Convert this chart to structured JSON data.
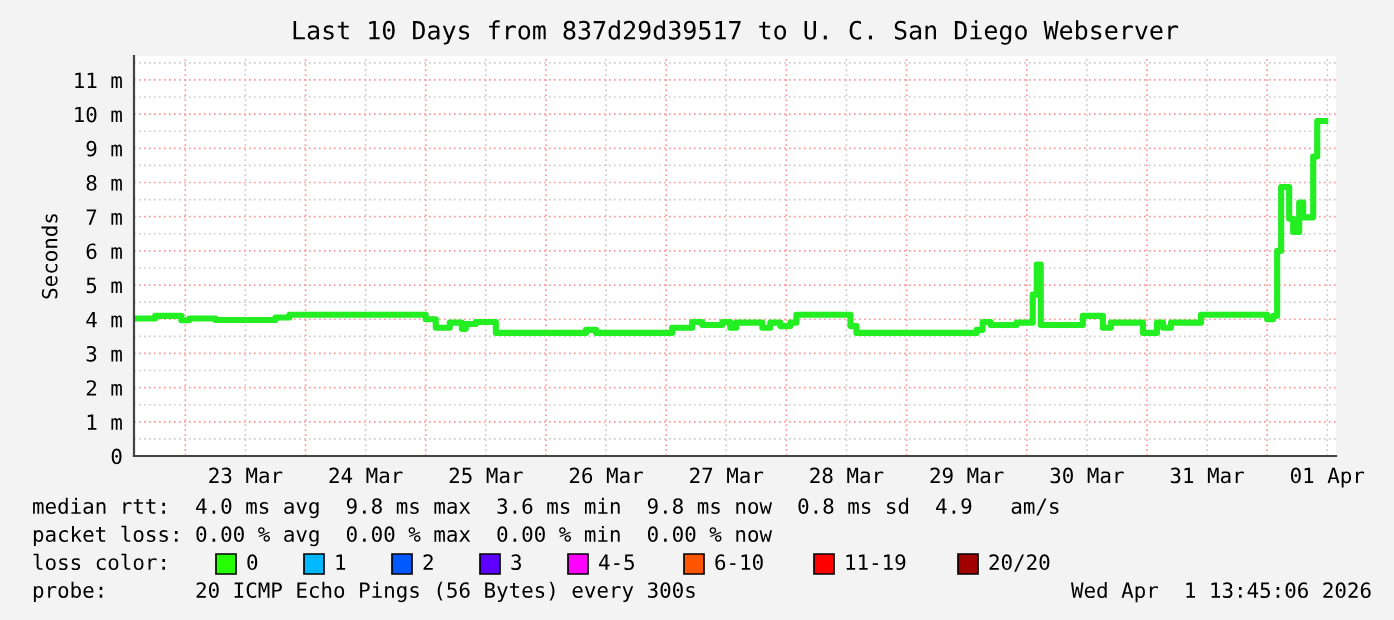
{
  "chart_data": {
    "type": "step",
    "title": "Last 10 Days from 837d29d39517 to U. C. San Diego Webserver",
    "ylabel": "Seconds",
    "x": [
      "2026-03-22T13:45",
      "2026-03-22T18:00",
      "2026-03-22T23:12",
      "2026-03-23T00:48",
      "2026-03-23T06:00",
      "2026-03-23T18:00",
      "2026-03-23T20:48",
      "2026-03-25T00:00",
      "2026-03-25T02:00",
      "2026-03-25T04:48",
      "2026-03-25T07:12",
      "2026-03-25T08:00",
      "2026-03-25T10:00",
      "2026-03-25T14:00",
      "2026-03-26T08:00",
      "2026-03-26T10:00",
      "2026-03-27T01:12",
      "2026-03-27T05:12",
      "2026-03-27T07:12",
      "2026-03-27T11:12",
      "2026-03-27T12:48",
      "2026-03-27T14:00",
      "2026-03-27T19:12",
      "2026-03-27T20:48",
      "2026-03-27T22:48",
      "2026-03-28T00:48",
      "2026-03-28T02:00",
      "2026-03-28T12:48",
      "2026-03-28T14:00",
      "2026-03-29T14:00",
      "2026-03-29T15:12",
      "2026-03-29T16:48",
      "2026-03-29T22:00",
      "2026-03-30T01:12",
      "2026-03-30T02:00",
      "2026-03-30T02:48",
      "2026-03-30T11:12",
      "2026-03-30T15:12",
      "2026-03-30T16:48",
      "2026-03-30T23:12",
      "2026-03-31T02:00",
      "2026-03-31T03:12",
      "2026-03-31T04:48",
      "2026-03-31T10:48",
      "2026-04-01T00:00",
      "2026-04-01T01:12",
      "2026-04-01T02:00",
      "2026-04-01T02:48",
      "2026-04-01T04:24",
      "2026-04-01T05:12",
      "2026-04-01T06:24",
      "2026-04-01T07:12",
      "2026-04-01T09:12",
      "2026-04-01T10:00",
      "2026-04-01T11:36"
    ],
    "series": [
      {
        "color": "#22ee22",
        "values": [
          4.02,
          4.1,
          3.97,
          4.02,
          3.98,
          4.05,
          4.13,
          4.0,
          3.75,
          3.9,
          3.72,
          3.86,
          3.92,
          3.6,
          3.69,
          3.6,
          3.75,
          3.92,
          3.83,
          3.92,
          3.75,
          3.9,
          3.75,
          3.9,
          3.8,
          3.9,
          4.13,
          3.8,
          3.6,
          3.69,
          3.92,
          3.83,
          3.9,
          4.72,
          5.6,
          3.83,
          4.1,
          3.75,
          3.9,
          3.6,
          3.9,
          3.75,
          3.9,
          4.13,
          4.0,
          4.1,
          6.0,
          7.87,
          6.94,
          6.55,
          7.41,
          6.98,
          8.76,
          9.8,
          9.8
        ]
      }
    ],
    "xlim": [
      "2026-03-22T13:45",
      "2026-04-01T13:45"
    ],
    "xticks": [
      {
        "value": "2026-03-23T00:00",
        "label": null
      },
      {
        "value": "2026-03-23T12:00",
        "label": "23 Mar"
      },
      {
        "value": "2026-03-24T00:00",
        "label": null
      },
      {
        "value": "2026-03-24T12:00",
        "label": "24 Mar"
      },
      {
        "value": "2026-03-25T00:00",
        "label": null
      },
      {
        "value": "2026-03-25T12:00",
        "label": "25 Mar"
      },
      {
        "value": "2026-03-26T00:00",
        "label": null
      },
      {
        "value": "2026-03-26T12:00",
        "label": "26 Mar"
      },
      {
        "value": "2026-03-27T00:00",
        "label": null
      },
      {
        "value": "2026-03-27T12:00",
        "label": "27 Mar"
      },
      {
        "value": "2026-03-28T00:00",
        "label": null
      },
      {
        "value": "2026-03-28T12:00",
        "label": "28 Mar"
      },
      {
        "value": "2026-03-29T00:00",
        "label": null
      },
      {
        "value": "2026-03-29T12:00",
        "label": "29 Mar"
      },
      {
        "value": "2026-03-30T00:00",
        "label": null
      },
      {
        "value": "2026-03-30T12:00",
        "label": "30 Mar"
      },
      {
        "value": "2026-03-31T00:00",
        "label": null
      },
      {
        "value": "2026-03-31T12:00",
        "label": "31 Mar"
      },
      {
        "value": "2026-04-01T00:00",
        "label": null
      },
      {
        "value": "2026-04-01T12:00",
        "label": "01 Apr"
      }
    ],
    "ylim": [
      0,
      11.7
    ],
    "yticks": [
      {
        "value": 0,
        "label": "0"
      },
      {
        "value": 0.5,
        "label": null
      },
      {
        "value": 1,
        "label": "1 m"
      },
      {
        "value": 1.5,
        "label": null
      },
      {
        "value": 2,
        "label": "2 m"
      },
      {
        "value": 2.5,
        "label": null
      },
      {
        "value": 3,
        "label": "3 m"
      },
      {
        "value": 3.5,
        "label": null
      },
      {
        "value": 4,
        "label": "4 m"
      },
      {
        "value": 4.5,
        "label": null
      },
      {
        "value": 5,
        "label": "5 m"
      },
      {
        "value": 5.5,
        "label": null
      },
      {
        "value": 6,
        "label": "6 m"
      },
      {
        "value": 6.5,
        "label": null
      },
      {
        "value": 7,
        "label": "7 m"
      },
      {
        "value": 7.5,
        "label": null
      },
      {
        "value": 8,
        "label": "8 m"
      },
      {
        "value": 8.5,
        "label": null
      },
      {
        "value": 9,
        "label": "9 m"
      },
      {
        "value": 9.5,
        "label": null
      },
      {
        "value": 10,
        "label": "10 m"
      },
      {
        "value": 10.5,
        "label": null
      },
      {
        "value": 11,
        "label": "11 m"
      },
      {
        "value": 11.5,
        "label": null
      }
    ],
    "grid": true,
    "annotations": [
      "median rtt:  4.0 ms avg  9.8 ms max  3.6 ms min  9.8 ms now  0.8 ms sd  4.9   am/s",
      "packet loss: 0.00 % avg  0.00 % max  0.00 % min  0.00 % now",
      "loss color:",
      "0",
      "1",
      "2",
      "3",
      "4-5",
      "6-10",
      "11-19",
      "20/20",
      "probe:       20 ICMP Echo Pings (56 Bytes) every 300s",
      "Wed Apr  1 13:45:06 2026"
    ]
  }
}
